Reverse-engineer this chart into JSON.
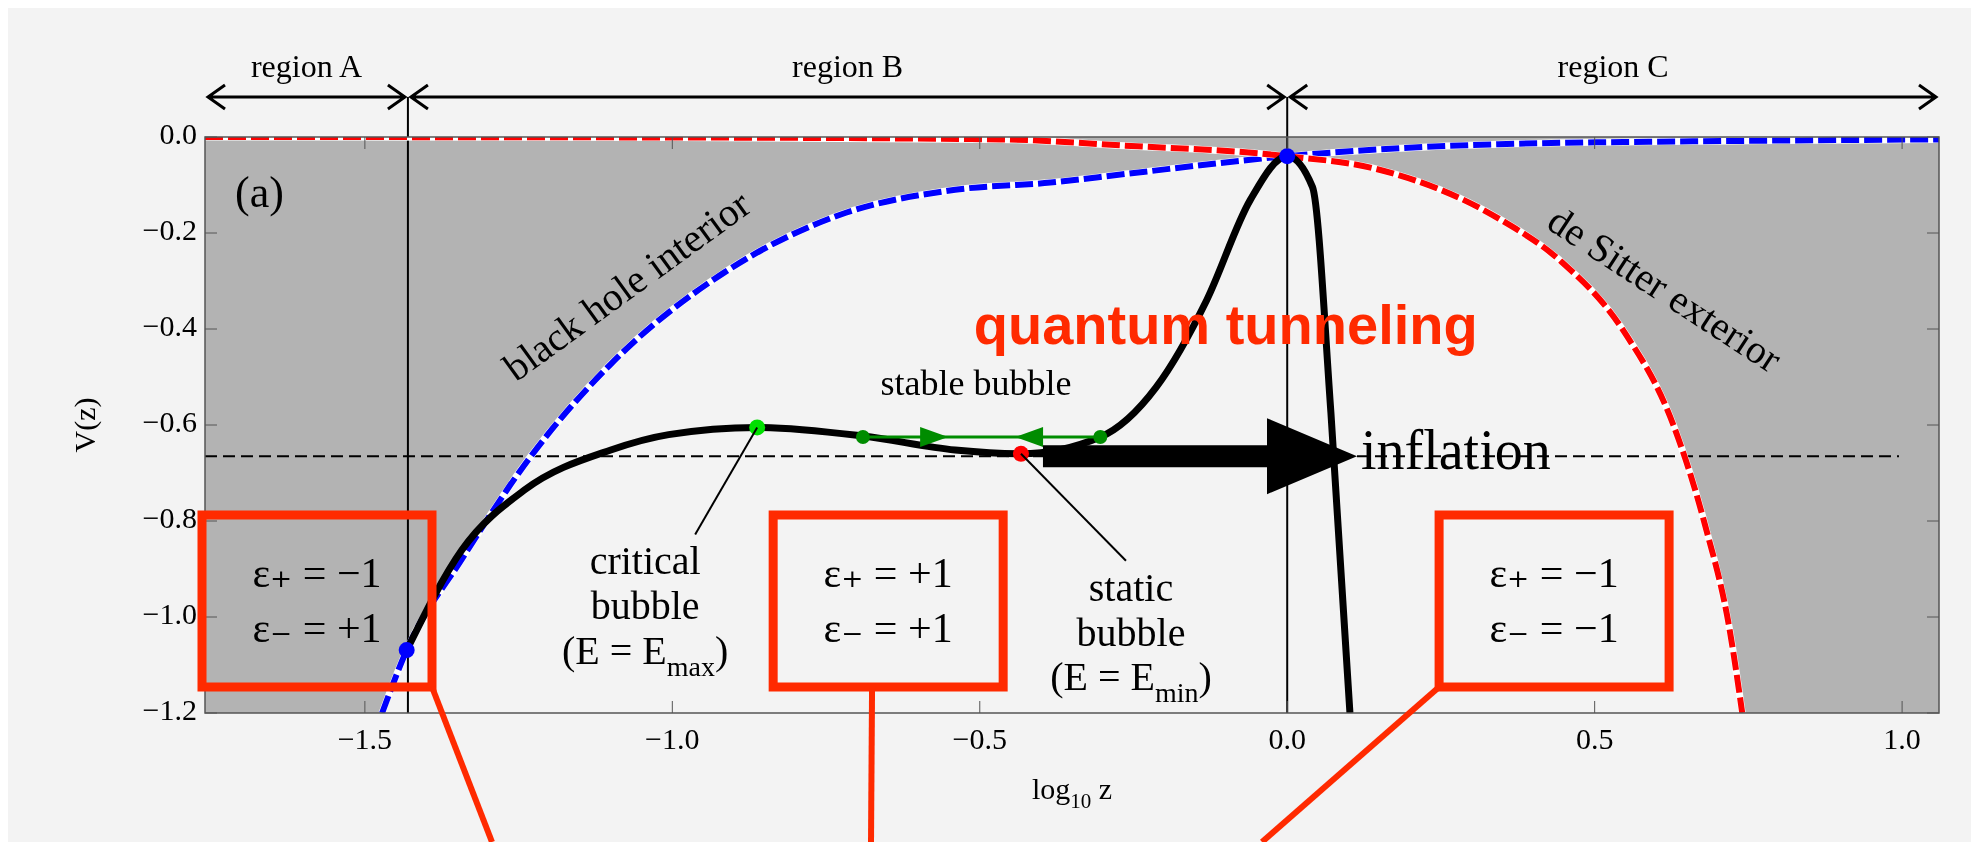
{
  "chart_data": {
    "type": "line",
    "xlabel": "log$_{10}$ z",
    "ylabel": "V(z)",
    "xlim": [
      -1.76,
      1.06
    ],
    "ylim": [
      -1.2,
      0
    ],
    "xticks": [
      {
        "value": -1.5,
        "label": "−1.5"
      },
      {
        "value": -1.0,
        "label": "−1.0"
      },
      {
        "value": -0.5,
        "label": "−0.5"
      },
      {
        "value": 0,
        "label": "0.0"
      },
      {
        "value": 0.5,
        "label": "0.5"
      },
      {
        "value": 1.0,
        "label": "1.0"
      }
    ],
    "yticks": [
      {
        "value": 0,
        "label": "0.0"
      },
      {
        "value": -0.2,
        "label": "−0.2"
      },
      {
        "value": -0.4,
        "label": "−0.4"
      },
      {
        "value": -0.6,
        "label": "−0.6"
      },
      {
        "value": -0.8,
        "label": "−0.8"
      },
      {
        "value": -1.0,
        "label": "−1.0"
      },
      {
        "value": -1.2,
        "label": "−1.2"
      }
    ],
    "series": [
      {
        "color": "#0000ff",
        "line_style": "dashed",
        "x": [
          -1.76,
          -1.472,
          -1.432,
          -1.342,
          -1.23,
          -1.1,
          -0.914,
          -0.727,
          -0.54,
          -0.385,
          -0.263,
          0,
          0.344,
          0.75,
          1.06
        ],
        "values": [
          null,
          -1.2,
          -1.069,
          -0.879,
          -0.665,
          -0.473,
          -0.281,
          -0.162,
          -0.11,
          -0.095,
          -0.077,
          -0.04,
          -0.015,
          -0.008,
          -0.005
        ],
        "lower": [
          -1.2,
          -1.2,
          -1.069,
          -0.879,
          -0.665,
          -0.473,
          -0.281,
          -0.162,
          -0.11,
          -0.095,
          -0.077,
          -0.04,
          null,
          null,
          null
        ],
        "upper": [
          0,
          0,
          0,
          0,
          0,
          0,
          0,
          0,
          0,
          0,
          0,
          0,
          null,
          null,
          null
        ]
      },
      {
        "color": "#ff0000",
        "line_style": "dashed",
        "x": [
          -1.76,
          -1.0,
          -0.466,
          -0.263,
          0,
          0.143,
          0.344,
          0.446,
          0.547,
          0.628,
          0.679,
          0.72,
          0.74,
          1.06
        ],
        "values": [
          0,
          -0.001,
          -0.005,
          -0.018,
          -0.04,
          -0.066,
          -0.17,
          -0.26,
          -0.404,
          -0.6,
          -0.806,
          -1.03,
          -1.2,
          null
        ],
        "lower": [
          null,
          null,
          null,
          null,
          -0.04,
          -0.066,
          -0.17,
          -0.26,
          -0.404,
          -0.6,
          -0.806,
          -1.03,
          -1.2,
          -1.2
        ],
        "upper": [
          null,
          null,
          null,
          null,
          0,
          0,
          0,
          0,
          0,
          0,
          0,
          0,
          0,
          0
        ]
      },
      {
        "color": "#000000",
        "line_style": "solid",
        "x": [
          -1.432,
          -1.342,
          -1.24,
          -1.1,
          -1.006,
          -0.862,
          -0.69,
          -0.54,
          -0.433,
          -0.304,
          -0.213,
          -0.131,
          -0.06,
          0,
          0.041,
          0.071,
          0.102
        ],
        "values": [
          -1.069,
          -0.86,
          -0.735,
          -0.652,
          -0.62,
          -0.605,
          -0.623,
          -0.652,
          -0.66,
          -0.625,
          -0.521,
          -0.34,
          -0.131,
          -0.04,
          -0.104,
          -0.573,
          -1.2
        ]
      },
      {
        "color": "#008c00",
        "line_style": "solid",
        "marker": "circle",
        "x": [
          -0.69,
          -0.304
        ],
        "values": [
          -0.625,
          -0.625
        ]
      },
      {
        "type": "scatter",
        "marker": "circle",
        "x": [
          -0.862,
          -0.433,
          -1.432,
          0
        ],
        "values": [
          -0.605,
          -0.66,
          -1.069,
          -0.04
        ],
        "colors": [
          "#00e000",
          "#ff0000",
          "#0000ff",
          "#0000ff"
        ]
      }
    ],
    "ref_lines": [
      {
        "axis": "x",
        "value": -1.43,
        "color": "#000000",
        "line_style": "solid"
      },
      {
        "axis": "x",
        "value": 0,
        "color": "#000000",
        "line_style": "solid"
      },
      {
        "axis": "y",
        "value": -0.665,
        "color": "#000000",
        "line_style": "dashed"
      }
    ],
    "annotations": [
      "region A",
      "region B",
      "region C",
      "(a)",
      "ε₊ = −1\nε₋ = +1",
      "ε₊ = +1\nε₋ = +1",
      "ε₊ = −1\nε₋ = −1",
      "black hole interior",
      "de Sitter exterior",
      "quantum tunneling",
      "stable bubble",
      {
        "text": "critical\nbubble\n(E = E$_{max}$)",
        "x": -0.862,
        "y": -0.605
      },
      {
        "text": "static\nbubble\n(E = E$_{min}$)",
        "x": -0.433,
        "y": -0.66
      },
      "inflation"
    ]
  }
}
